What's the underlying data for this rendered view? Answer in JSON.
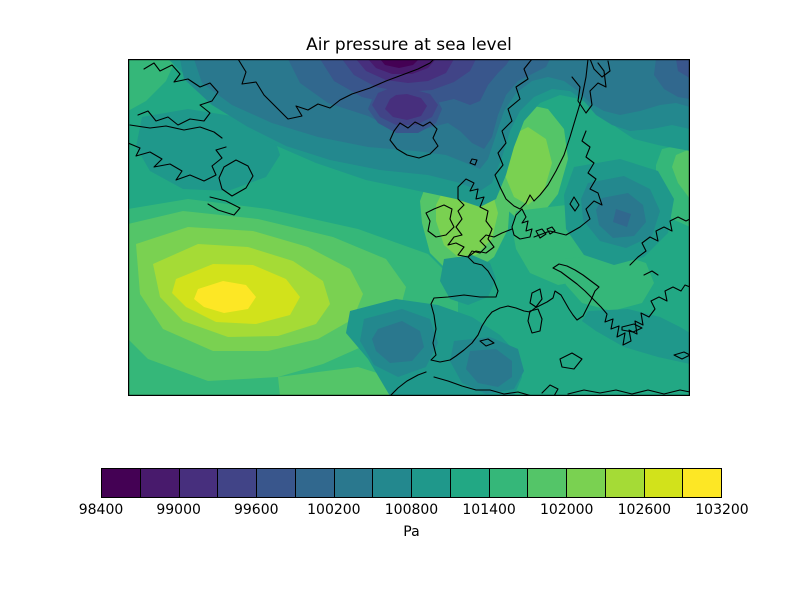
{
  "figure": {
    "title": "Air pressure at sea level",
    "background_color": "#ffffff"
  },
  "map": {
    "description": "Filled contour map of sea-level air pressure over the North Atlantic and Europe with black coastlines",
    "border_color": "#000000",
    "coastline_color": "#000000"
  },
  "colorbar": {
    "label": "Pa",
    "tick_labels": [
      "98400",
      "99000",
      "99600",
      "100200",
      "100800",
      "101400",
      "102000",
      "102600",
      "103200"
    ],
    "segment_colors": [
      "#440154",
      "#481a6c",
      "#472f7d",
      "#414487",
      "#39568c",
      "#31688e",
      "#2a788e",
      "#23888e",
      "#1f988b",
      "#22a884",
      "#35b779",
      "#54c568",
      "#7ad151",
      "#a5db36",
      "#d2e21b",
      "#fde725"
    ]
  },
  "chart_data": {
    "type": "heatmap",
    "title": "Air pressure at sea level",
    "colorbar_label": "Pa",
    "colormap": "viridis",
    "value_range_pa": [
      98400,
      103200
    ],
    "contour_levels_pa": [
      98400,
      98700,
      99000,
      99300,
      99600,
      99900,
      100200,
      100500,
      100800,
      101100,
      101400,
      101700,
      102000,
      102300,
      102600,
      102900,
      103200
    ],
    "colorbar_tick_values_pa": [
      98400,
      99000,
      99600,
      100200,
      100800,
      101400,
      102000,
      102600,
      103200
    ],
    "legend_position": "bottom",
    "grid": false,
    "features": [
      {
        "type": "low",
        "approx_location": "Greenland Sea north of Iceland (top center)",
        "approx_core_value_pa": 98400
      },
      {
        "type": "high",
        "approx_location": "central North Atlantic (left center)",
        "approx_core_value_pa": 103100
      },
      {
        "type": "low",
        "approx_location": "Baltic states / eastern Europe (right center)",
        "approx_core_value_pa": 100100
      },
      {
        "type": "low",
        "approx_location": "west of Iberia and off Morocco (bottom center)",
        "approx_core_value_pa": 100300
      },
      {
        "type": "low",
        "approx_location": "far northeast corner (White Sea)",
        "approx_core_value_pa": 99700
      }
    ]
  }
}
